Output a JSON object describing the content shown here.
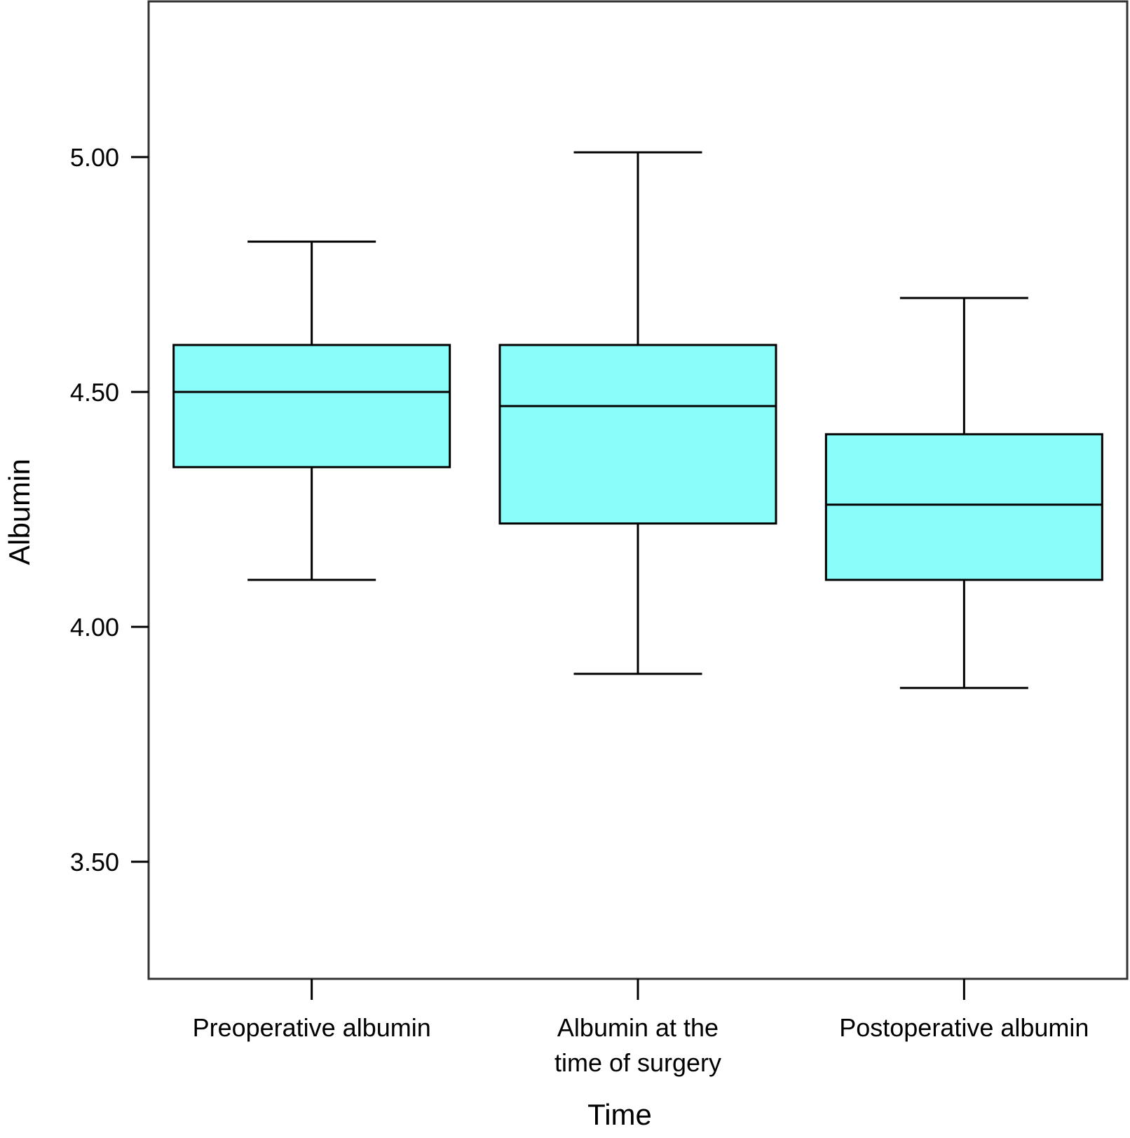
{
  "chart_data": {
    "type": "box",
    "title": "",
    "xlabel": "Time",
    "ylabel": "Albumin",
    "ylim": [
      3.25,
      5.3
    ],
    "yticks": [
      3.5,
      4.0,
      4.5,
      5.0
    ],
    "ytick_labels": [
      "3.50",
      "4.00",
      "4.50",
      "5.00"
    ],
    "grid": false,
    "legend": "none",
    "box_fill": "#8AFCFA",
    "line_color": "#000000",
    "categories": [
      [
        "Preoperative albumin"
      ],
      [
        "Albumin at the",
        "time of surgery"
      ],
      [
        "Postoperative albumin"
      ]
    ],
    "boxes": [
      {
        "whisker_low": 4.1,
        "q1": 4.34,
        "median": 4.5,
        "q3": 4.6,
        "whisker_high": 4.82
      },
      {
        "whisker_low": 3.9,
        "q1": 4.22,
        "median": 4.47,
        "q3": 4.6,
        "whisker_high": 5.01
      },
      {
        "whisker_low": 3.87,
        "q1": 4.1,
        "median": 4.26,
        "q3": 4.41,
        "whisker_high": 4.7
      }
    ]
  }
}
